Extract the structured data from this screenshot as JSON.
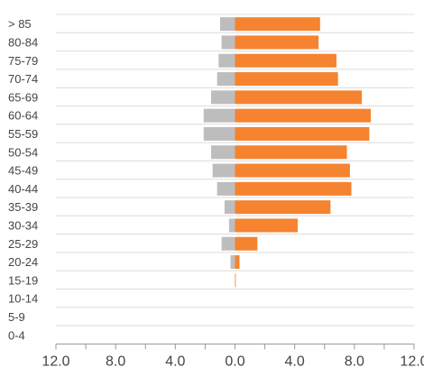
{
  "chart_data": {
    "type": "bar",
    "orientation": "horizontal",
    "layout": "population-pyramid",
    "categories": [
      "> 85",
      "80-84",
      "75-79",
      "70-74",
      "65-69",
      "60-64",
      "55-59",
      "50-54",
      "45-49",
      "40-44",
      "35-39",
      "30-34",
      "25-29",
      "20-24",
      "15-19",
      "10-14",
      "5-9",
      "0-4"
    ],
    "series": [
      {
        "side": "left",
        "color": "#bdbdbd",
        "values": [
          1.0,
          0.9,
          1.1,
          1.2,
          1.6,
          2.1,
          2.1,
          1.6,
          1.5,
          1.2,
          0.7,
          0.4,
          0.9,
          0.3,
          0.0,
          0.0,
          0.0,
          0.0
        ]
      },
      {
        "side": "right",
        "color": "#f5832f",
        "values": [
          5.7,
          5.6,
          6.8,
          6.9,
          8.5,
          9.1,
          9.0,
          7.5,
          7.7,
          7.8,
          6.4,
          4.2,
          1.5,
          0.3,
          0.05,
          0.0,
          0.0,
          0.0
        ]
      }
    ],
    "x_tick_labels": [
      "12.0",
      "8.0",
      "4.0",
      "0.0",
      "4.0",
      "8.0",
      "12.0"
    ],
    "xlim": [
      -12,
      12
    ],
    "grid": "horizontal",
    "legend": "none"
  }
}
